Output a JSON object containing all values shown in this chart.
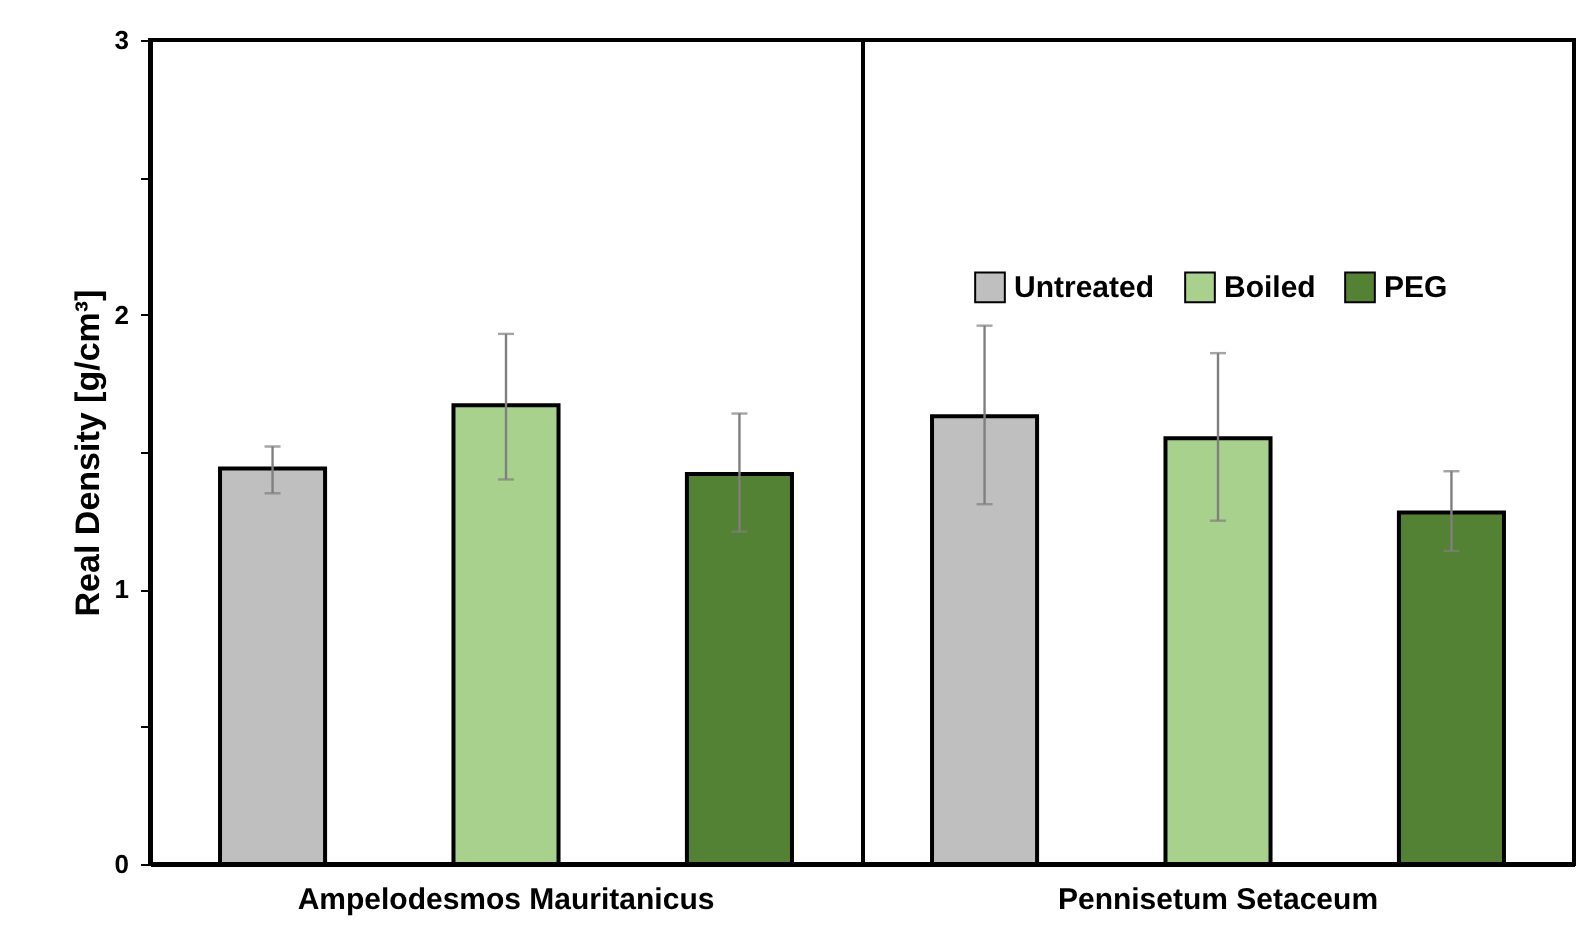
{
  "chart_data": {
    "type": "bar",
    "ylabel": "Real Density [g/cm³]",
    "categories": [
      "Ampelodesmos  Mauritanicus",
      "Pennisetum Setaceum"
    ],
    "series": [
      {
        "name": "Untreated",
        "color": "#bfbfbf",
        "values": [
          1.44,
          1.63
        ],
        "errors": [
          [
            1.35,
            1.52
          ],
          [
            1.31,
            1.96
          ]
        ]
      },
      {
        "name": "Boiled",
        "color": "#a9d18e",
        "values": [
          1.67,
          1.55
        ],
        "errors": [
          [
            1.4,
            1.93
          ],
          [
            1.25,
            1.86
          ]
        ]
      },
      {
        "name": "PEG",
        "color": "#548235",
        "values": [
          1.42,
          1.28
        ],
        "errors": [
          [
            1.21,
            1.64
          ],
          [
            1.14,
            1.43
          ]
        ]
      }
    ],
    "ylim": [
      0,
      3
    ],
    "yticks": [
      0,
      {
        "value": 0.5,
        "label": null
      },
      1,
      {
        "value": 1.5,
        "label": null
      },
      2,
      {
        "value": 2.5,
        "label": null
      },
      3
    ],
    "grid": false,
    "legend": "top right"
  }
}
